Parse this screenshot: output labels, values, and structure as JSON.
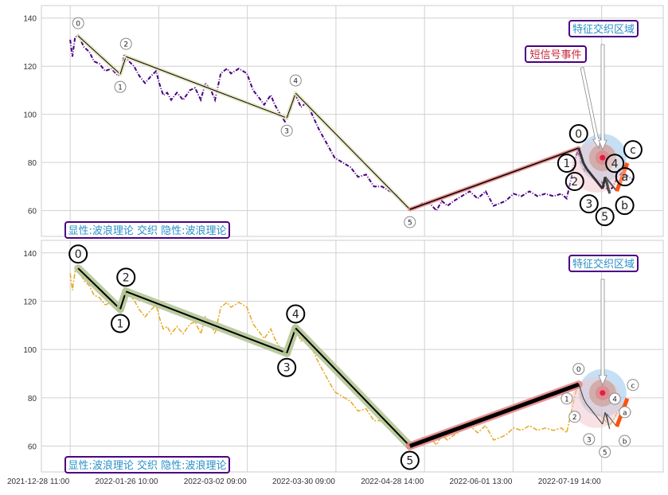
{
  "chart_data": [
    {
      "type": "line",
      "panel": "top",
      "ylim": [
        49.3,
        145.2
      ],
      "xlim": [
        -6.5,
        133.9
      ],
      "grid": true,
      "yticks": [
        60,
        80,
        100,
        120,
        140
      ],
      "price_color": "#4b0082",
      "price": {
        "x": [
          0,
          0.5,
          1.1,
          1.8,
          3.1,
          4.3,
          5.4,
          6.6,
          7.9,
          9.3,
          10.8,
          11.5,
          12.2,
          13.3,
          14.4,
          15.6,
          16.9,
          18.3,
          19.4,
          20.1,
          21.0,
          21.9,
          22.8,
          24.1,
          25.5,
          27.0,
          28.2,
          29.5,
          30.5,
          31.8,
          32.7,
          34.0,
          35.4,
          36.3,
          38.1,
          39.9,
          41.3,
          42.6,
          43.8,
          45.3,
          46.2,
          47.4,
          48.5,
          49.2,
          50.1,
          50.9,
          52.1,
          53.4,
          54.6,
          56.1,
          57.9,
          59.7,
          61.5,
          63.3,
          65.0,
          66.8,
          68.6,
          70.4,
          72.2,
          74.0,
          75.5,
          76.7,
          78.0,
          79.4,
          81.2,
          82.7,
          83.9,
          85.2,
          86.6,
          88.4,
          90.2,
          92.0,
          93.8,
          95.6,
          97.0,
          98.3,
          100.1,
          101.9,
          103.7,
          105.5,
          107.3,
          109.1,
          110.9,
          112.1,
          113.2,
          113.9,
          114.6,
          115.4,
          116.3,
          117.2,
          118.6,
          119.9,
          120.8,
          121.7,
          122.6,
          123.6,
          124.7,
          126.1,
          127.0
        ],
        "y": [
          131,
          124,
          132,
          133,
          128,
          126,
          122,
          121,
          118,
          119,
          116,
          117,
          125,
          122,
          120,
          116,
          113,
          116,
          118,
          113,
          108,
          109,
          106,
          109,
          106,
          110,
          111,
          106,
          113,
          110,
          106,
          117,
          119,
          117,
          119,
          117,
          110,
          107,
          104,
          108,
          104,
          100,
          97,
          99,
          104,
          108,
          103,
          105,
          100,
          94,
          88,
          82,
          80,
          78,
          74,
          75,
          70,
          70,
          68,
          66,
          62,
          61,
          61,
          63,
          63,
          60,
          64,
          62,
          64,
          66,
          68,
          65,
          68,
          62,
          63,
          64,
          67,
          66,
          68,
          66,
          67,
          66,
          67,
          65,
          74,
          80,
          85,
          80,
          76,
          76,
          73,
          72,
          70,
          68,
          70,
          74,
          76,
          74,
          73
        ]
      },
      "main_wave": [
        {
          "label": "0",
          "x": 1.8,
          "y": 132.6,
          "pos": "above"
        },
        {
          "label": "1",
          "x": 11.3,
          "y": 116.7,
          "pos": "below"
        },
        {
          "label": "2",
          "x": 12.6,
          "y": 124.0,
          "pos": "above"
        },
        {
          "label": "3",
          "x": 48.9,
          "y": 98.5,
          "pos": "below"
        },
        {
          "label": "4",
          "x": 50.9,
          "y": 108.8,
          "pos": "above"
        },
        {
          "label": "5",
          "x": 76.7,
          "y": 60.5,
          "pos": "below"
        },
        {
          "label": "",
          "x": 114.8,
          "y": 86.0,
          "pos": "none"
        }
      ],
      "sub_wave": [
        {
          "label": "0",
          "x": 114.8,
          "y": 86.0,
          "pos": "above"
        },
        {
          "label": "1",
          "x": 115.9,
          "y": 79.7,
          "pos": "below"
        },
        {
          "label": "2",
          "x": 116.6,
          "y": 77.4,
          "pos": "below"
        },
        {
          "label": "3",
          "x": 120.2,
          "y": 69.1,
          "pos": "below"
        },
        {
          "label": "4",
          "x": 120.8,
          "y": 74.0,
          "pos": "above"
        },
        {
          "label": "5",
          "x": 121.8,
          "y": 67.1,
          "pos": "below"
        },
        {
          "label": "a",
          "x": 121.1,
          "y": 73.4,
          "pos": "above"
        },
        {
          "label": "b",
          "x": 123.4,
          "y": 68.1,
          "pos": "below"
        },
        {
          "label": "c",
          "x": 125.8,
          "y": 79.7,
          "pos": "above"
        }
      ],
      "highlight_center": {
        "x": 120.2,
        "y": 82
      },
      "annotations": [
        "特征交织区域",
        "短信号事件"
      ],
      "caption": "显性:波浪理论 交织 隐性:波浪理论"
    },
    {
      "type": "line",
      "panel": "bottom",
      "ylim": [
        49.3,
        145.2
      ],
      "xlim": [
        -6.5,
        133.9
      ],
      "grid": true,
      "yticks": [
        60,
        80,
        100,
        120,
        140
      ],
      "price_color": "#e8a820",
      "main_wave": [
        {
          "label": "0",
          "x": 1.8,
          "y": 133.6,
          "pos": "above"
        },
        {
          "label": "1",
          "x": 11.3,
          "y": 116.7,
          "pos": "below"
        },
        {
          "label": "2",
          "x": 12.6,
          "y": 124.0,
          "pos": "above"
        },
        {
          "label": "3",
          "x": 48.9,
          "y": 98.5,
          "pos": "below"
        },
        {
          "label": "4",
          "x": 50.9,
          "y": 108.8,
          "pos": "above"
        },
        {
          "label": "5",
          "x": 76.7,
          "y": 60.0,
          "pos": "below"
        },
        {
          "label": "",
          "x": 114.8,
          "y": 85.5,
          "pos": "none"
        }
      ],
      "annotations": [
        "特征交织区域"
      ],
      "caption": "显性:波浪理论 交织 隐性:波浪理论"
    }
  ],
  "xaxis": {
    "tick_index": [
      0,
      20,
      40,
      60,
      80,
      100,
      120
    ],
    "tick_labels": [
      "2021-12-28 11:00",
      "2022-01-26 10:00",
      "2022-03-02 09:00",
      "2022-03-30 09:00",
      "2022-04-28 14:00",
      "2022-06-01 13:00",
      "2022-07-19 14:00"
    ]
  },
  "colors": {
    "annotation_blue": "#2a8fc8",
    "annotation_red": "#c8283c",
    "box_border": "#4b0082",
    "orange": "#ff5010"
  }
}
